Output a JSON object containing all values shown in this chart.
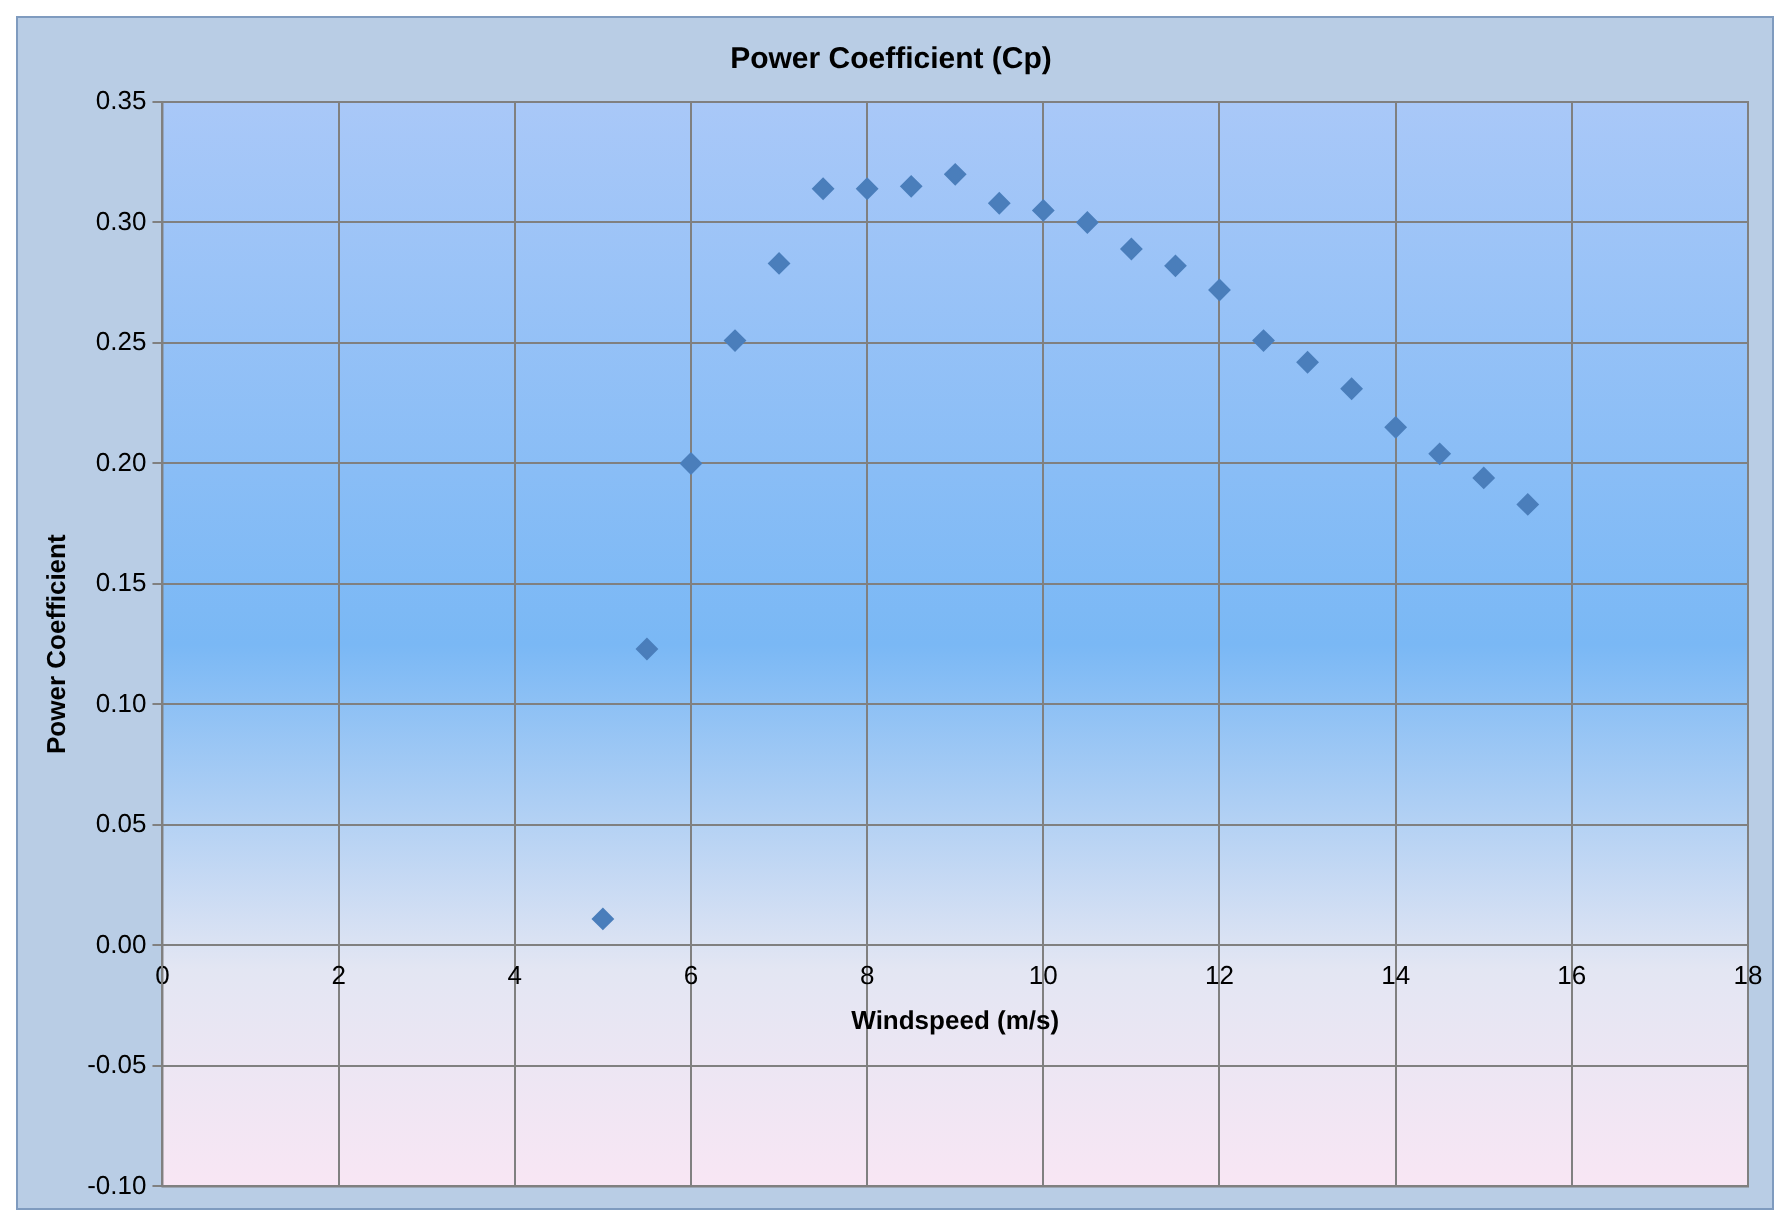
{
  "chart_data": {
    "type": "scatter",
    "title": "Power Coefficient (Cp)",
    "xlabel": "Windspeed (m/s)",
    "ylabel": "Power Coefficient",
    "x": [
      5,
      5.5,
      6,
      6.5,
      7,
      7.5,
      8,
      8.5,
      9,
      9.5,
      10,
      10.5,
      11,
      11.5,
      12,
      12.5,
      13,
      13.5,
      14,
      14.5,
      15,
      15.5
    ],
    "series": [
      {
        "color": "#4a7ebb",
        "values": [
          0.011,
          0.123,
          0.2,
          0.251,
          0.283,
          0.314,
          0.314,
          0.315,
          0.32,
          0.308,
          0.305,
          0.3,
          0.289,
          0.282,
          0.272,
          0.251,
          0.242,
          0.231,
          0.215,
          0.204,
          0.194,
          0.183
        ]
      }
    ],
    "xlim": [
      0,
      18
    ],
    "xticks": [
      0,
      2,
      4,
      6,
      8,
      10,
      12,
      14,
      16,
      18
    ],
    "ylim": [
      -0.1,
      0.35
    ],
    "yticks": [
      {
        "value": -0.1,
        "label": "-0.10"
      },
      {
        "value": -0.05,
        "label": "-0.05"
      },
      {
        "value": 0,
        "label": "0.00"
      },
      {
        "value": 0.05,
        "label": "0.05"
      },
      {
        "value": 0.1,
        "label": "0.10"
      },
      {
        "value": 0.15,
        "label": "0.15"
      },
      {
        "value": 0.2,
        "label": "0.20"
      },
      {
        "value": 0.25,
        "label": "0.25"
      },
      {
        "value": 0.3,
        "label": "0.30"
      },
      {
        "value": 0.35,
        "label": "0.35"
      }
    ],
    "grid": true,
    "legend": false,
    "marker": "diamond"
  }
}
